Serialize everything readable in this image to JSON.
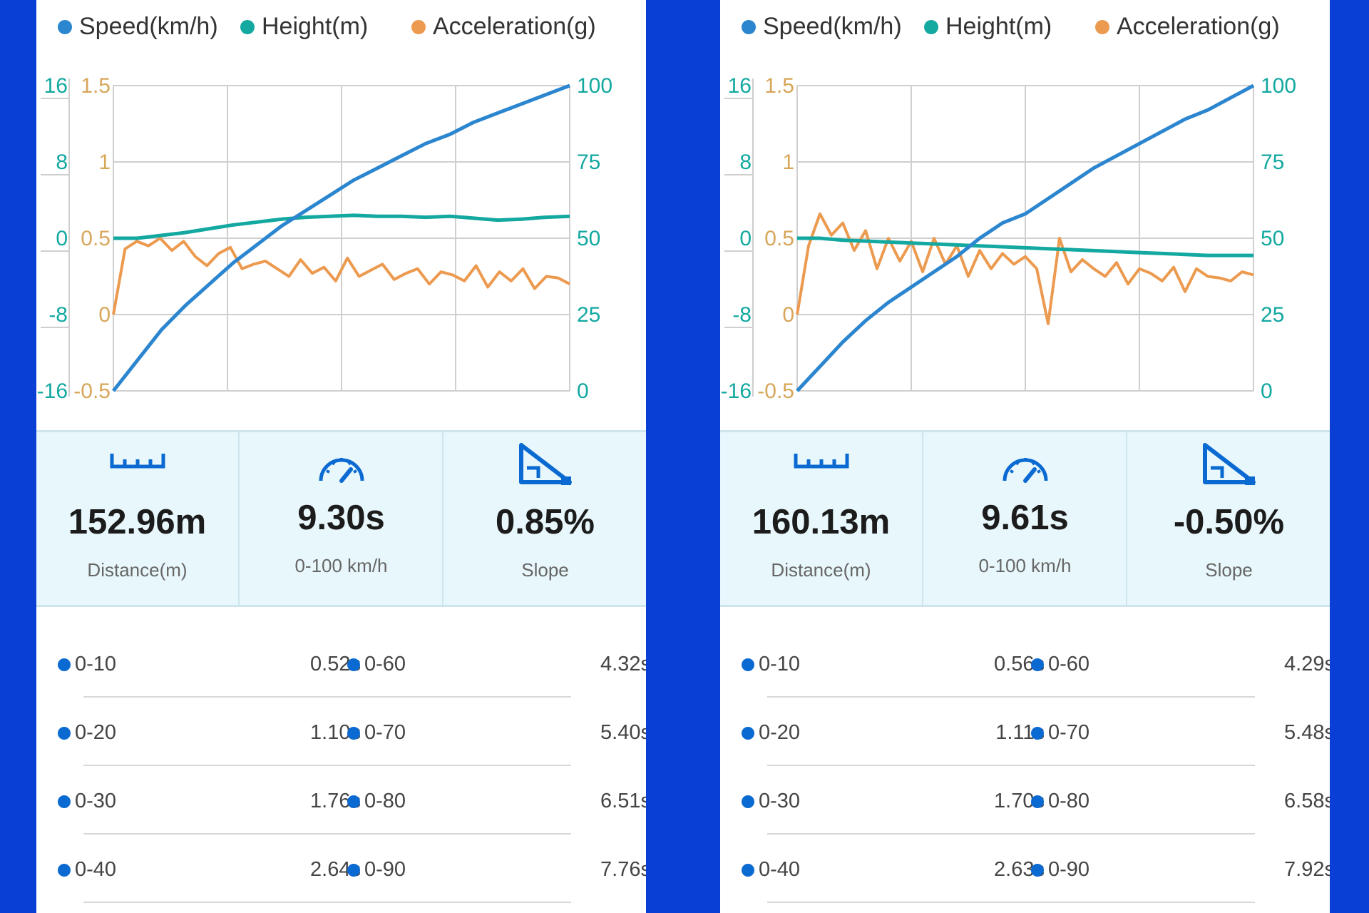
{
  "colors": {
    "background": "#0a3fd6",
    "speed": "#2b86cf",
    "height": "#13a8a0",
    "acceleration": "#ec9a4f",
    "stats_bg": "#e8f7fb",
    "icon": "#0a6ad2"
  },
  "panels": [
    {
      "legend": [
        "Speed(km/h)",
        "Height(m)",
        "Acceleration(g)"
      ],
      "chart_data": {
        "type": "line",
        "x_divisions": 4,
        "axes": {
          "height_ticks": [
            "16",
            "8",
            "0",
            "-8",
            "-16"
          ],
          "accel_ticks": [
            "1.5",
            "1",
            "0.5",
            "0",
            "-0.5"
          ],
          "speed_ticks": [
            "100",
            "75",
            "50",
            "25",
            "0"
          ],
          "height_range": [
            -16,
            16
          ],
          "accel_range": [
            -0.5,
            1.5
          ],
          "speed_range": [
            0,
            100
          ]
        },
        "series": [
          {
            "name": "Speed(km/h)",
            "axis": "speed",
            "values": [
              0,
              10,
              20,
              28,
              35,
              42,
              48,
              54,
              59,
              64,
              69,
              73,
              77,
              81,
              84,
              88,
              91,
              94,
              97,
              100
            ]
          },
          {
            "name": "Height(m)",
            "axis": "height",
            "values": [
              0,
              0,
              0.3,
              0.6,
              1,
              1.4,
              1.7,
              2,
              2.2,
              2.3,
              2.4,
              2.3,
              2.3,
              2.2,
              2.3,
              2.1,
              1.9,
              2.0,
              2.2,
              2.3
            ]
          },
          {
            "name": "Acceleration(g)",
            "axis": "accel",
            "values": [
              0.0,
              0.43,
              0.48,
              0.45,
              0.5,
              0.42,
              0.48,
              0.38,
              0.32,
              0.4,
              0.44,
              0.3,
              0.33,
              0.35,
              0.3,
              0.25,
              0.36,
              0.27,
              0.31,
              0.22,
              0.37,
              0.25,
              0.29,
              0.33,
              0.23,
              0.27,
              0.3,
              0.2,
              0.28,
              0.26,
              0.22,
              0.32,
              0.18,
              0.28,
              0.22,
              0.3,
              0.17,
              0.25,
              0.24,
              0.2
            ]
          }
        ]
      },
      "stats": [
        {
          "icon": "ruler-icon",
          "value": "152.96m",
          "label": "Distance(m)"
        },
        {
          "icon": "speedometer-icon",
          "value": "9.30s",
          "label": "0-100 km/h"
        },
        {
          "icon": "slope-icon",
          "value": "0.85%",
          "label": "Slope"
        }
      ],
      "times": [
        {
          "l_label": "0-10",
          "l_value": "0.52s",
          "r_label": "0-60",
          "r_value": "4.32s"
        },
        {
          "l_label": "0-20",
          "l_value": "1.10s",
          "r_label": "0-70",
          "r_value": "5.40s"
        },
        {
          "l_label": "0-30",
          "l_value": "1.76s",
          "r_label": "0-80",
          "r_value": "6.51s"
        },
        {
          "l_label": "0-40",
          "l_value": "2.64s",
          "r_label": "0-90",
          "r_value": "7.76s"
        }
      ]
    },
    {
      "legend": [
        "Speed(km/h)",
        "Height(m)",
        "Acceleration(g)"
      ],
      "chart_data": {
        "type": "line",
        "x_divisions": 4,
        "axes": {
          "height_ticks": [
            "16",
            "8",
            "0",
            "-8",
            "-16"
          ],
          "accel_ticks": [
            "1.5",
            "1",
            "0.5",
            "0",
            "-0.5"
          ],
          "speed_ticks": [
            "100",
            "75",
            "50",
            "25",
            "0"
          ],
          "height_range": [
            -16,
            16
          ],
          "accel_range": [
            -0.5,
            1.5
          ],
          "speed_range": [
            0,
            100
          ]
        },
        "series": [
          {
            "name": "Speed(km/h)",
            "axis": "speed",
            "values": [
              0,
              8,
              16,
              23,
              29,
              34,
              39,
              44,
              50,
              55,
              58,
              63,
              68,
              73,
              77,
              81,
              85,
              89,
              92,
              96,
              100
            ]
          },
          {
            "name": "Height(m)",
            "axis": "height",
            "values": [
              0,
              0,
              -0.2,
              -0.3,
              -0.4,
              -0.5,
              -0.6,
              -0.7,
              -0.8,
              -0.9,
              -1.0,
              -1.1,
              -1.2,
              -1.3,
              -1.4,
              -1.5,
              -1.6,
              -1.7,
              -1.8,
              -1.8,
              -1.8
            ]
          },
          {
            "name": "Acceleration(g)",
            "axis": "accel",
            "values": [
              0.0,
              0.45,
              0.66,
              0.52,
              0.6,
              0.42,
              0.55,
              0.3,
              0.5,
              0.35,
              0.48,
              0.28,
              0.5,
              0.33,
              0.45,
              0.25,
              0.42,
              0.3,
              0.4,
              0.33,
              0.38,
              0.3,
              -0.06,
              0.5,
              0.28,
              0.36,
              0.3,
              0.25,
              0.34,
              0.2,
              0.3,
              0.27,
              0.22,
              0.31,
              0.15,
              0.3,
              0.25,
              0.24,
              0.22,
              0.28,
              0.26
            ]
          }
        ]
      },
      "stats": [
        {
          "icon": "ruler-icon",
          "value": "160.13m",
          "label": "Distance(m)"
        },
        {
          "icon": "speedometer-icon",
          "value": "9.61s",
          "label": "0-100 km/h"
        },
        {
          "icon": "slope-icon",
          "value": "-0.50%",
          "label": "Slope"
        }
      ],
      "times": [
        {
          "l_label": "0-10",
          "l_value": "0.56s",
          "r_label": "0-60",
          "r_value": "4.29s"
        },
        {
          "l_label": "0-20",
          "l_value": "1.11s",
          "r_label": "0-70",
          "r_value": "5.48s"
        },
        {
          "l_label": "0-30",
          "l_value": "1.70s",
          "r_label": "0-80",
          "r_value": "6.58s"
        },
        {
          "l_label": "0-40",
          "l_value": "2.63s",
          "r_label": "0-90",
          "r_value": "7.92s"
        }
      ]
    }
  ]
}
